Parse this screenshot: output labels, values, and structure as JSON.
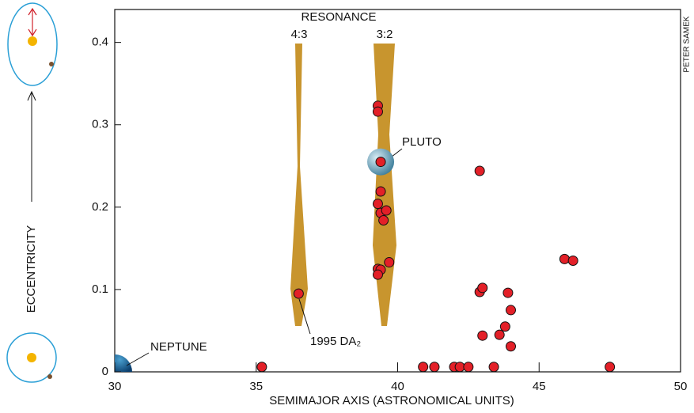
{
  "chart_data": {
    "type": "scatter",
    "xlabel": "SEMIMAJOR AXIS (ASTRONOMICAL UNITS)",
    "ylabel": "ECCENTRICITY",
    "credit": "PETER SAMEK",
    "annotations": [
      "RESONANCE",
      "4:3",
      "3:2",
      "NEPTUNE",
      "PLUTO",
      "1995 DA₂"
    ],
    "xlim": [
      30,
      50
    ],
    "xticks": [
      30,
      35,
      40,
      45,
      50
    ],
    "ylim": [
      0,
      0.44
    ],
    "yticks": [
      0,
      0.1,
      0.2,
      0.3,
      0.4
    ],
    "series": [
      {
        "color": "#e32028",
        "x": [
          35.2,
          36.5,
          39.3,
          39.3,
          39.4,
          39.4,
          39.3,
          39.4,
          39.5,
          39.6,
          39.3,
          39.4,
          39.3,
          39.7,
          42.9,
          42.9,
          43.0,
          43.0,
          43.9,
          44.0,
          43.8,
          43.6,
          44.0,
          45.9,
          46.2,
          40.9,
          41.3,
          42.0,
          42.2,
          42.5,
          43.4,
          47.5
        ],
        "values": [
          0.006,
          0.095,
          0.323,
          0.316,
          0.255,
          0.219,
          0.204,
          0.193,
          0.184,
          0.196,
          0.125,
          0.124,
          0.118,
          0.133,
          0.244,
          0.097,
          0.102,
          0.044,
          0.096,
          0.075,
          0.055,
          0.045,
          0.031,
          0.137,
          0.135,
          0.006,
          0.006,
          0.006,
          0.006,
          0.006,
          0.006,
          0.006
        ]
      }
    ]
  }
}
